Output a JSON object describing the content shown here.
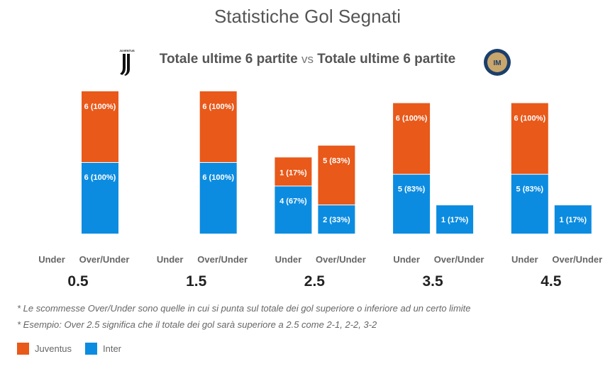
{
  "chart_data": {
    "type": "bar",
    "title": "Statistiche Gol Segnati",
    "subtitle_left": "Totale ultime 6 partite",
    "subtitle_vs": "vs",
    "subtitle_right": "Totale ultime 6 partite",
    "column_labels": [
      "Under",
      "Over/Under"
    ],
    "categories": [
      "0.5",
      "1.5",
      "2.5",
      "3.5",
      "4.5"
    ],
    "total_matches": 6,
    "series": [
      {
        "name": "Juventus",
        "color": "#E8591A",
        "under": [
          0,
          0,
          1,
          6,
          6
        ],
        "over": [
          6,
          6,
          5,
          0,
          0
        ],
        "under_labels": [
          "",
          "",
          "1 (17%)",
          "6 (100%)",
          "6 (100%)"
        ],
        "over_labels": [
          "6 (100%)",
          "6 (100%)",
          "5 (83%)",
          "",
          ""
        ]
      },
      {
        "name": "Inter",
        "color": "#0C8CE0",
        "under": [
          0,
          0,
          4,
          5,
          5
        ],
        "over": [
          6,
          6,
          2,
          1,
          1
        ],
        "under_labels": [
          "",
          "",
          "4 (67%)",
          "5 (83%)",
          "5 (83%)"
        ],
        "over_labels": [
          "6 (100%)",
          "6 (100%)",
          "2 (33%)",
          "1 (17%)",
          "1 (17%)"
        ]
      }
    ],
    "legend_position": "bottom-left"
  },
  "footnotes": [
    "* Le scommesse Over/Under sono quelle in cui si punta sul totale dei gol superiore o inferiore ad un certo limite",
    "* Esempio: Over 2.5 significa che il totale dei gol sarà superiore a 2.5 come 2-1, 2-2, 3-2"
  ],
  "logos": {
    "left": "JUVENTUS",
    "right": "FCIM"
  }
}
